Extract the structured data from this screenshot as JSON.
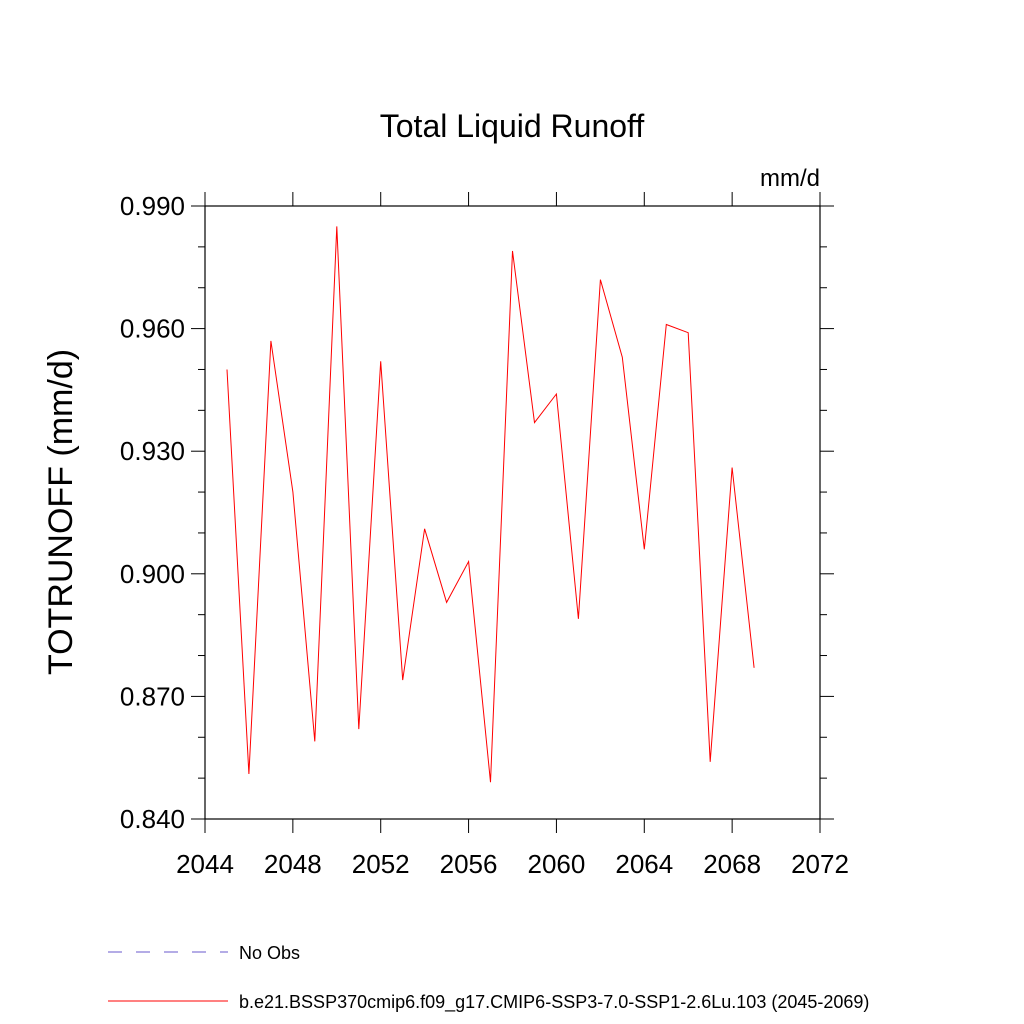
{
  "chart_data": {
    "type": "line",
    "title": "Total Liquid Runoff",
    "units": "mm/d",
    "ylabel": "TOTRUNOFF  (mm/d)",
    "xlabel": "",
    "xlim": [
      2044,
      2072
    ],
    "ylim": [
      0.84,
      0.99
    ],
    "x_ticks": [
      "2044",
      "2048",
      "2052",
      "2056",
      "2060",
      "2064",
      "2068",
      "2072"
    ],
    "y_ticks": [
      "0.840",
      "0.870",
      "0.900",
      "0.930",
      "0.960",
      "0.990"
    ],
    "x_tick_values": [
      2044,
      2048,
      2052,
      2056,
      2060,
      2064,
      2068,
      2072
    ],
    "y_tick_values": [
      0.84,
      0.87,
      0.9,
      0.93,
      0.96,
      0.99
    ],
    "grid": false,
    "legend_position": "bottom",
    "series": [
      {
        "name": "b.e21.BSSP370cmip6.f09_g17.CMIP6-SSP3-7.0-SSP1-2.6Lu.103 (2045-2069)",
        "color": "#ff0000",
        "style": "solid",
        "x": [
          2045,
          2046,
          2047,
          2048,
          2049,
          2050,
          2051,
          2052,
          2053,
          2054,
          2055,
          2056,
          2057,
          2058,
          2059,
          2060,
          2061,
          2062,
          2063,
          2064,
          2065,
          2066,
          2067,
          2068,
          2069
        ],
        "y": [
          0.95,
          0.851,
          0.957,
          0.92,
          0.859,
          0.985,
          0.862,
          0.952,
          0.874,
          0.911,
          0.893,
          0.903,
          0.849,
          0.979,
          0.937,
          0.944,
          0.889,
          0.972,
          0.953,
          0.906,
          0.961,
          0.959,
          0.854,
          0.926,
          0.877
        ]
      }
    ],
    "legend": [
      {
        "label": "No Obs",
        "color": "#6a5acd",
        "style": "dashed"
      },
      {
        "label": "b.e21.BSSP370cmip6.f09_g17.CMIP6-SSP3-7.0-SSP1-2.6Lu.103 (2045-2069)",
        "color": "#ff0000",
        "style": "solid"
      }
    ]
  }
}
